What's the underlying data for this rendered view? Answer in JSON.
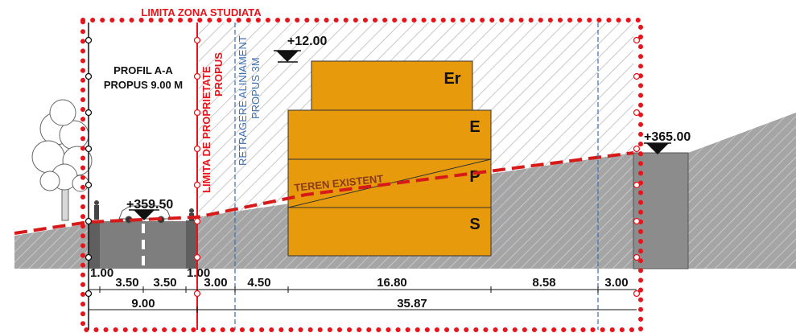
{
  "title": "LIMITA ZONA STUDIATA",
  "profile": {
    "line1": "PROFIL A-A",
    "line2": "PROPUS 9.00 M"
  },
  "labels": {
    "property_limit_1": "LIMITA DE PROPRIETATE",
    "property_limit_2": "PROPUS",
    "setback_1": "RETRAGERE ALINIAMENT",
    "setback_2": "PROPUS 3M",
    "existing_terrain": "TEREN EXISTENT"
  },
  "elevations": {
    "top": "+12.00",
    "road": "+359.50",
    "right": "+365.00"
  },
  "floors": [
    "Er",
    "E",
    "P",
    "S"
  ],
  "dimensions": {
    "sidewalk_left": "1.00",
    "sidewalk_right": "1.00",
    "lane_left": "3.50",
    "lane_right": "3.50",
    "d_300_a": "3.00",
    "d_450": "4.50",
    "d_1680": "16.80",
    "d_858": "8.58",
    "d_300_b": "3.00",
    "total_road": "9.00",
    "total_site": "35.87"
  },
  "colors": {
    "limit_red": "#e8141b",
    "building_orange": "#e69a0c",
    "terrain_grey": "#a9a9a9",
    "setback_blue": "#3a6fb5",
    "terrain_dash": "#d61a1a",
    "terrain_text": "#8b3a1a"
  }
}
